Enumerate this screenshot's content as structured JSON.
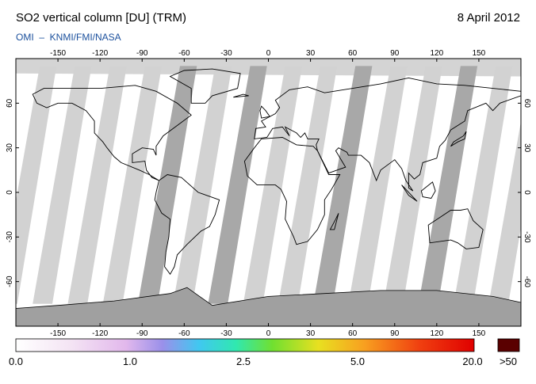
{
  "header": {
    "title": "SO2 vertical column [DU] (TRM)",
    "date": "8 April 2012",
    "subtitle": "OMI  –  KNMI/FMI/NASA"
  },
  "map": {
    "lon_range": [
      -180,
      180
    ],
    "lat_range": [
      -90,
      90
    ],
    "lon_ticks": [
      -150,
      -120,
      -90,
      -60,
      -30,
      0,
      30,
      60,
      90,
      120,
      150
    ],
    "lat_ticks": [
      60,
      30,
      0,
      -30,
      -60
    ]
  },
  "colorbar": {
    "labels": [
      "0.0",
      "1.0",
      "2.5",
      "5.0",
      "20.0",
      ">50"
    ]
  }
}
